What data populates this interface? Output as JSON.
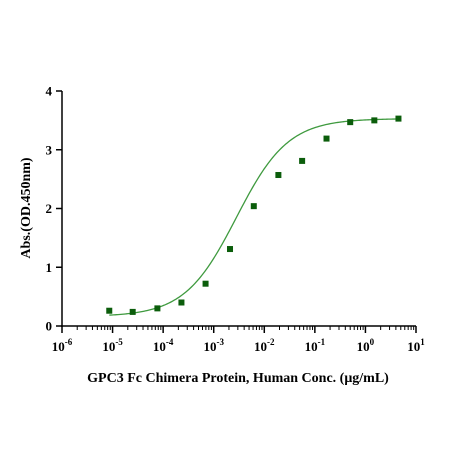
{
  "chart_data": {
    "type": "scatter",
    "xlabel": "GPC3 Fc Chimera Protein, Human Conc. (μg/mL)",
    "ylabel": "Abs.(OD.450nm)",
    "x_scale": "log",
    "xlim": [
      1e-06,
      10
    ],
    "ylim": [
      0,
      4
    ],
    "x_ticks": [
      {
        "base": "10",
        "exp": "-6"
      },
      {
        "base": "10",
        "exp": "-5"
      },
      {
        "base": "10",
        "exp": "-4"
      },
      {
        "base": "10",
        "exp": "-3"
      },
      {
        "base": "10",
        "exp": "-2"
      },
      {
        "base": "10",
        "exp": "-1"
      },
      {
        "base": "10",
        "exp": "0"
      },
      {
        "base": "10",
        "exp": "1"
      }
    ],
    "y_ticks": [
      "0",
      "1",
      "2",
      "3",
      "4"
    ],
    "grid": false,
    "legend": "none",
    "marker_color": "#0b5d0b",
    "curve_color": "#3f9a3f",
    "points": [
      {
        "x": 8.6e-06,
        "y": 0.26
      },
      {
        "x": 2.5e-05,
        "y": 0.24
      },
      {
        "x": 7.7e-05,
        "y": 0.3
      },
      {
        "x": 0.00023,
        "y": 0.4
      },
      {
        "x": 0.00069,
        "y": 0.72
      },
      {
        "x": 0.0021,
        "y": 1.31
      },
      {
        "x": 0.0062,
        "y": 2.04
      },
      {
        "x": 0.019,
        "y": 2.57
      },
      {
        "x": 0.056,
        "y": 2.81
      },
      {
        "x": 0.17,
        "y": 3.19
      },
      {
        "x": 0.5,
        "y": 3.47
      },
      {
        "x": 1.5,
        "y": 3.5
      },
      {
        "x": 4.5,
        "y": 3.53
      }
    ],
    "fit": {
      "bottom": 0.16,
      "top": 3.53,
      "ec50": 0.0028,
      "hill": 0.85
    }
  }
}
